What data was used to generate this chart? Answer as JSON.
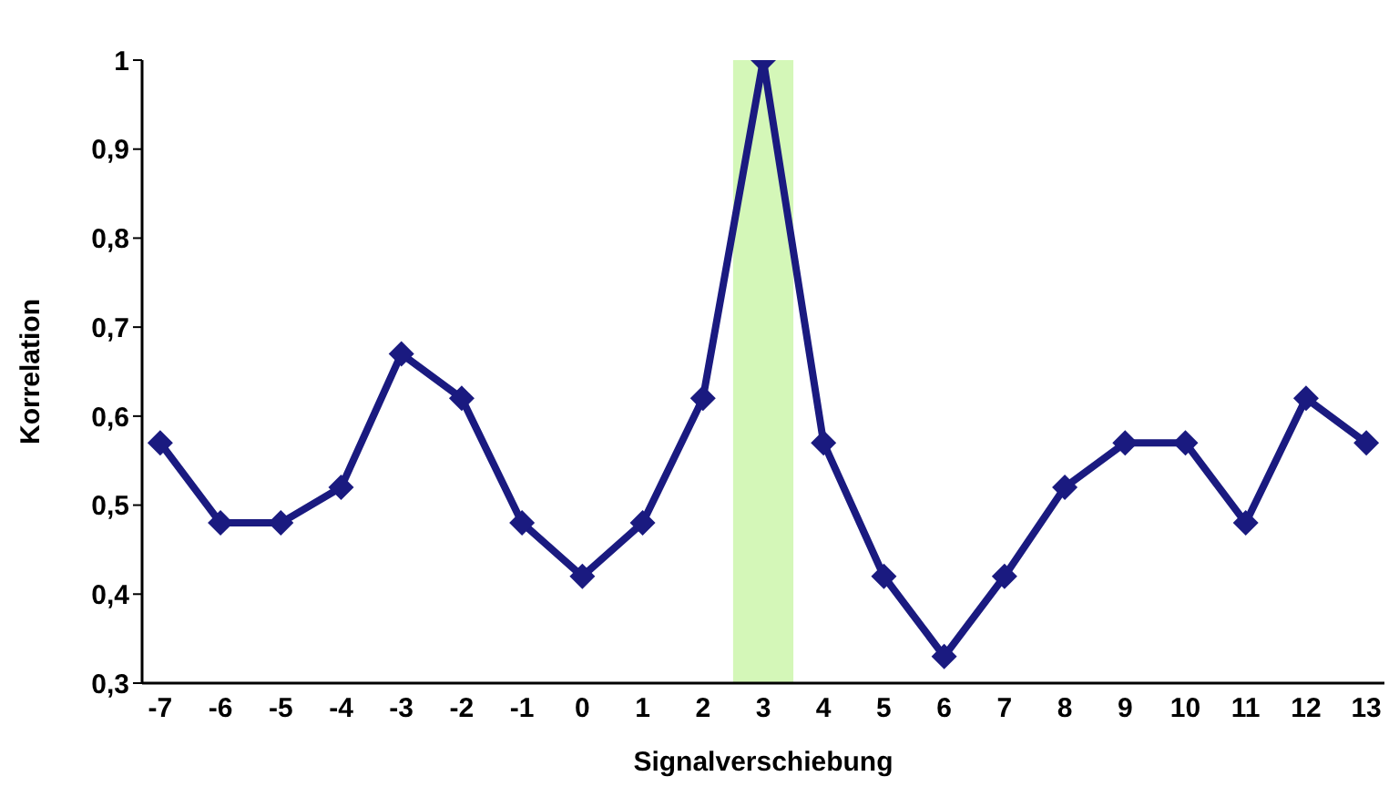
{
  "chart_data": {
    "type": "line",
    "xlabel": "Signalverschiebung",
    "ylabel": "Korrelation",
    "x": [
      -7,
      -6,
      -5,
      -4,
      -3,
      -2,
      -1,
      0,
      1,
      2,
      3,
      4,
      5,
      6,
      7,
      8,
      9,
      10,
      11,
      12,
      13
    ],
    "series": [
      {
        "color": "#1a1a80",
        "values": [
          0.57,
          0.48,
          0.48,
          0.52,
          0.67,
          0.62,
          0.48,
          0.42,
          0.48,
          0.62,
          1.0,
          0.57,
          0.42,
          0.33,
          0.42,
          0.52,
          0.57,
          0.57,
          0.48,
          0.62,
          0.57
        ]
      }
    ],
    "xlim": [
      -7.3,
      13.3
    ],
    "xticks": [
      -7,
      -6,
      -5,
      -4,
      -3,
      -2,
      -1,
      0,
      1,
      2,
      3,
      4,
      5,
      6,
      7,
      8,
      9,
      10,
      11,
      12,
      13
    ],
    "ylim": [
      0.3,
      1
    ],
    "yticks": [
      {
        "value": 0.3,
        "label": "0,3"
      },
      {
        "value": 0.4,
        "label": "0,4"
      },
      {
        "value": 0.5,
        "label": "0,5"
      },
      {
        "value": 0.6,
        "label": "0,6"
      },
      {
        "value": 0.7,
        "label": "0,7"
      },
      {
        "value": 0.8,
        "label": "0,8"
      },
      {
        "value": 0.9,
        "label": "0,9"
      },
      1
    ],
    "bands": [
      {
        "axis": "x",
        "from": 2.5,
        "to": 3.5,
        "color": "#d4f7b8"
      }
    ],
    "marker": "diamond",
    "line_style": "solid",
    "grid": false,
    "legend": false
  }
}
